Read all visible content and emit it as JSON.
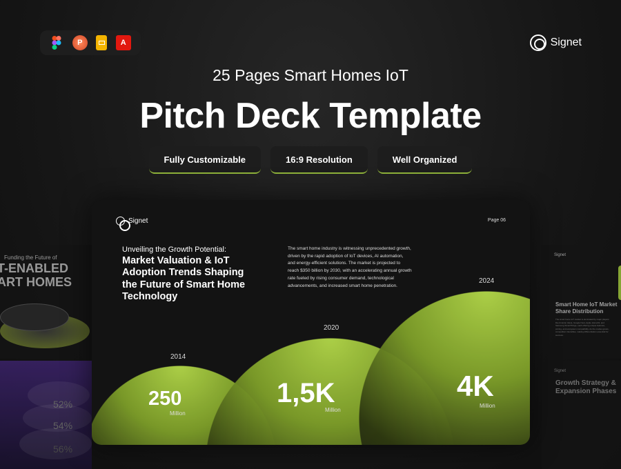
{
  "apps": [
    {
      "name": "figma-icon"
    },
    {
      "name": "powerpoint-icon",
      "label": "P"
    },
    {
      "name": "google-slides-icon"
    },
    {
      "name": "acrobat-icon",
      "label": "A"
    }
  ],
  "brand": "Signet",
  "subtitle": "25 Pages Smart Homes IoT",
  "title": "Pitch Deck Template",
  "features": [
    "Fully Customizable",
    "16:9 Resolution",
    "Well Organized"
  ],
  "left_slide": {
    "kicker": "Funding the Future of",
    "heading_1": "T-ENABLED",
    "heading_2": "ART HOMES",
    "stats": [
      "52%",
      "54%",
      "56%"
    ]
  },
  "right_slide": {
    "brand": "Signet",
    "heading": "Smart Home IoT Market Share Distribution",
    "body": "The smart home IoT market is dominated by major players like Amazon Alexa, Google Nest, Apple HomeKit, and Samsung SmartThings, each offering unique features, pricing, and ecosystem compatibility. As the market grows, competition intensifies, making differentiation essential for success.",
    "brand2": "Signet",
    "heading2": "Growth Strategy & Expansion Phases"
  },
  "main_slide": {
    "brand": "Signet",
    "page": "Page 06",
    "kicker": "Unveiling the Growth Potential:",
    "heading": "Market Valuation & IoT Adoption Trends Shaping the Future of Smart Home Technology",
    "body": "The smart home industry is witnessing unprecedented growth, driven by the rapid adoption of IoT devices, AI automation, and energy-efficient solutions. The market is projected to reach $350 billion by 2030, with an accelerating annual growth rate fueled by rising consumer demand, technological advancements, and increased smart home penetration.",
    "points": [
      {
        "year": "2014",
        "value": "250",
        "unit": "Million"
      },
      {
        "year": "2020",
        "value": "1,5K",
        "unit": "Million"
      },
      {
        "year": "2024",
        "value": "4K",
        "unit": "Million"
      }
    ]
  },
  "colors": {
    "accent": "#b4d94a",
    "purple": "#4a2a8a"
  }
}
